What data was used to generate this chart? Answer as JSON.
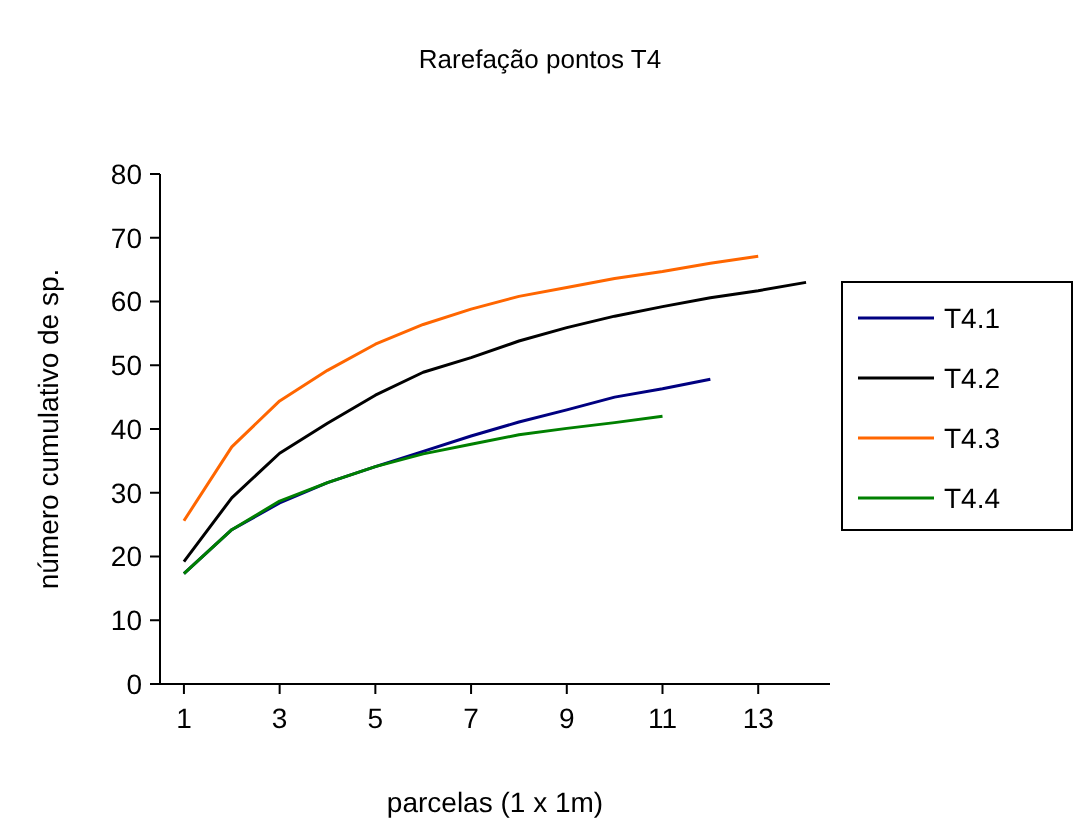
{
  "chart_data": {
    "type": "line",
    "title": "Rarefação pontos T4",
    "xlabel": "parcelas (1 x 1m)",
    "ylabel": "número cumulativo de sp.",
    "x": [
      1,
      2,
      3,
      4,
      5,
      6,
      7,
      8,
      9,
      10,
      11,
      12,
      13,
      14
    ],
    "xlim": [
      0.5,
      14.5
    ],
    "xticks": [
      1,
      3,
      5,
      7,
      9,
      11,
      13
    ],
    "ylim": [
      0,
      80
    ],
    "yticks": [
      0,
      10,
      20,
      30,
      40,
      50,
      60,
      70,
      80
    ],
    "grid": false,
    "legend": "right",
    "marker": "none",
    "series": [
      {
        "name": "T4.1",
        "color": "#000080",
        "values": [
          17.3,
          24.2,
          28.4,
          31.6,
          34.1,
          36.5,
          38.9,
          41.1,
          43,
          45,
          46.3,
          47.8,
          null,
          null
        ]
      },
      {
        "name": "T4.2",
        "color": "#000000",
        "values": [
          19.2,
          29.2,
          36.2,
          40.9,
          45.3,
          48.9,
          51.2,
          53.8,
          55.9,
          57.7,
          59.2,
          60.6,
          61.7,
          63
        ]
      },
      {
        "name": "T4.3",
        "color": "#ff6600",
        "values": [
          25.6,
          37.2,
          44.4,
          49.2,
          53.3,
          56.4,
          58.8,
          60.8,
          62.2,
          63.6,
          64.7,
          66,
          67.1,
          null
        ]
      },
      {
        "name": "T4.4",
        "color": "#008000",
        "values": [
          17.3,
          24.2,
          28.7,
          31.6,
          34.1,
          36.1,
          37.6,
          39.1,
          40.1,
          41,
          42,
          null,
          null,
          null
        ]
      }
    ]
  }
}
